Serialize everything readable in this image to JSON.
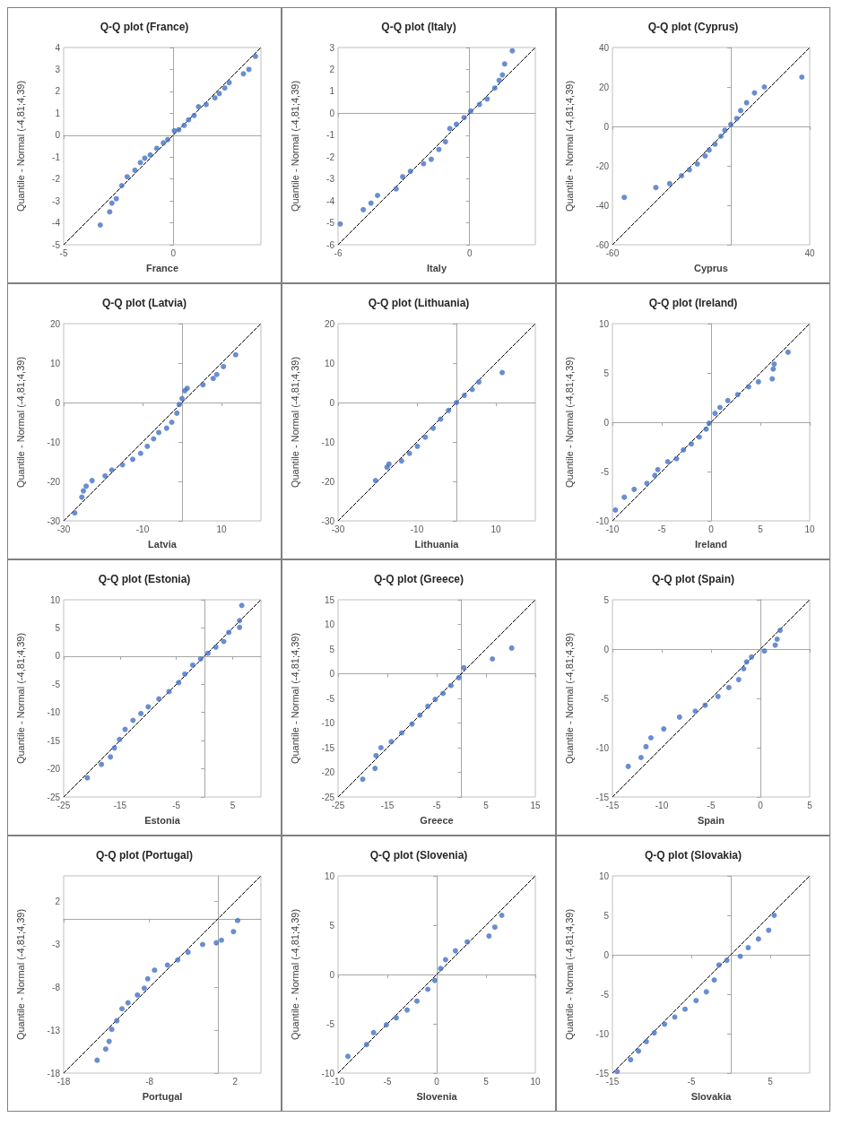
{
  "chart_data": [
    {
      "type": "scatter",
      "title": "Q-Q plot (France)",
      "xlabel": "France",
      "ylabel": "Quantile - Normal (-4,81;4,39)",
      "xlim": [
        -5,
        4
      ],
      "ylim": [
        -5,
        4
      ],
      "xticks": [
        -5,
        0
      ],
      "yticks": [
        -5,
        -4,
        -3,
        -2,
        -1,
        0,
        1,
        2,
        3,
        4
      ],
      "series": [
        {
          "type": "scatter",
          "marker": "circle",
          "color": "#4472c4",
          "x": [
            -3.33,
            -2.9,
            -2.8,
            -2.6,
            -2.35,
            -2.1,
            -1.75,
            -1.5,
            -1.3,
            -1.05,
            -0.75,
            -0.45,
            -0.25,
            0.05,
            0.25,
            0.5,
            0.7,
            0.95,
            1.15,
            1.5,
            1.9,
            2.1,
            2.35,
            2.55,
            3.2,
            3.45,
            3.75
          ],
          "values": [
            -4.1,
            -3.5,
            -3.1,
            -2.9,
            -2.3,
            -1.9,
            -1.6,
            -1.25,
            -1.05,
            -0.9,
            -0.6,
            -0.35,
            -0.2,
            0.2,
            0.25,
            0.45,
            0.7,
            0.9,
            1.3,
            1.4,
            1.7,
            1.9,
            2.15,
            2.4,
            2.8,
            3.0,
            3.6
          ]
        },
        {
          "type": "line",
          "marker": "none",
          "color": "#000000",
          "line_style": "dashed",
          "x": [
            -5,
            4
          ],
          "values": [
            -5,
            4
          ]
        }
      ]
    },
    {
      "type": "scatter",
      "title": "Q-Q plot (Italy)",
      "xlabel": "Italy",
      "ylabel": "Quantile - Normal (-4,81;4,39)",
      "xlim": [
        -6,
        3
      ],
      "ylim": [
        -6,
        3
      ],
      "xticks": [
        -6,
        0
      ],
      "yticks": [
        -6,
        -5,
        -4,
        -3,
        -2,
        -1,
        0,
        1,
        2,
        3
      ],
      "series": [
        {
          "type": "scatter",
          "marker": "circle",
          "color": "#4472c4",
          "x": [
            -5.9,
            -4.85,
            -4.5,
            -4.2,
            -3.35,
            -3.05,
            -2.7,
            -2.1,
            -1.75,
            -1.4,
            -1.1,
            -0.9,
            -0.6,
            -0.25,
            0.05,
            0.45,
            0.8,
            1.15,
            1.35,
            1.5,
            1.6,
            1.95
          ],
          "values": [
            -5.05,
            -4.4,
            -4.1,
            -3.75,
            -3.45,
            -2.9,
            -2.65,
            -2.3,
            -2.1,
            -1.65,
            -1.3,
            -0.7,
            -0.5,
            -0.2,
            0.1,
            0.4,
            0.65,
            1.15,
            1.5,
            1.75,
            2.25,
            2.85
          ]
        },
        {
          "type": "line",
          "marker": "none",
          "color": "#000000",
          "line_style": "dashed",
          "x": [
            -6,
            3
          ],
          "values": [
            -6,
            3
          ]
        }
      ]
    },
    {
      "type": "scatter",
      "title": "Q-Q plot (Cyprus)",
      "xlabel": "Cyprus",
      "ylabel": "Quantile - Normal (-4,81;4,39)",
      "xlim": [
        -60,
        40
      ],
      "ylim": [
        -60,
        40
      ],
      "xticks": [
        -60,
        40
      ],
      "yticks": [
        -60,
        -40,
        -20,
        0,
        20,
        40
      ],
      "series": [
        {
          "type": "scatter",
          "marker": "circle",
          "color": "#4472c4",
          "x": [
            -54,
            -38,
            -31,
            -25,
            -21,
            -17,
            -13,
            -11,
            -8,
            -5,
            -3,
            0,
            3,
            5,
            8,
            12,
            17,
            36
          ],
          "values": [
            -36,
            -31,
            -29,
            -25,
            -22,
            -19,
            -15,
            -12,
            -9,
            -5,
            -2,
            1,
            4,
            8,
            12,
            17,
            20,
            25
          ]
        },
        {
          "type": "line",
          "marker": "none",
          "color": "#000000",
          "line_style": "dashed",
          "x": [
            -60,
            40
          ],
          "values": [
            -60,
            40
          ]
        }
      ]
    },
    {
      "type": "scatter",
      "title": "Q-Q plot (Latvia)",
      "xlabel": "Latvia",
      "ylabel": "Quantile - Normal (-4,81;4,39)",
      "xlim": [
        -30,
        20
      ],
      "ylim": [
        -30,
        20
      ],
      "xticks": [
        -30,
        -10,
        10
      ],
      "yticks": [
        -30,
        -20,
        -10,
        0,
        10,
        20
      ],
      "series": [
        {
          "type": "scatter",
          "marker": "circle",
          "color": "#4472c4",
          "x": [
            -27.2,
            -25.4,
            -25,
            -24.3,
            -22.8,
            -19.5,
            -17.8,
            -15.1,
            -12.5,
            -10.5,
            -8.8,
            -7.2,
            -5.9,
            -3.9,
            -2.6,
            -1.3,
            -0.7,
            0,
            0.7,
            1.3,
            5.3,
            7.9,
            8.8,
            10.5,
            13.6
          ],
          "values": [
            -28,
            -24,
            -22.4,
            -21.2,
            -19.8,
            -18.6,
            -17.1,
            -15.8,
            -14.4,
            -12.9,
            -11.1,
            -9.2,
            -7.6,
            -6.5,
            -5,
            -2.7,
            -0.5,
            1,
            3,
            3.6,
            4.5,
            6.1,
            7.1,
            9.1,
            12.1
          ]
        },
        {
          "type": "line",
          "marker": "none",
          "color": "#000000",
          "line_style": "dashed",
          "x": [
            -30,
            20
          ],
          "values": [
            -30,
            20
          ]
        }
      ]
    },
    {
      "type": "scatter",
      "title": "Q-Q plot (Lithuania)",
      "xlabel": "Lithuania",
      "ylabel": "Quantile - Normal (-4,81;4,39)",
      "xlim": [
        -30,
        20
      ],
      "ylim": [
        -30,
        20
      ],
      "xticks": [
        -30,
        -10,
        10
      ],
      "yticks": [
        -30,
        -20,
        -10,
        0,
        10,
        20
      ],
      "series": [
        {
          "type": "scatter",
          "marker": "circle",
          "color": "#4472c4",
          "x": [
            -20.5,
            -17.6,
            -17.1,
            -13.9,
            -11.9,
            -9.9,
            -7.9,
            -5.9,
            -4,
            -2,
            0,
            2,
            4,
            5.7,
            11.6
          ],
          "values": [
            -19.8,
            -16.4,
            -15.6,
            -14.8,
            -12.9,
            -11.1,
            -8.8,
            -6.5,
            -4.2,
            -2,
            0,
            1.8,
            3.3,
            5.2,
            7.6
          ]
        },
        {
          "type": "line",
          "marker": "none",
          "color": "#000000",
          "line_style": "dashed",
          "x": [
            -30,
            20
          ],
          "values": [
            -30,
            20
          ]
        }
      ]
    },
    {
      "type": "scatter",
      "title": "Q-Q plot (Ireland)",
      "xlabel": "Ireland",
      "ylabel": "Quantile - Normal (-4,81;4,39)",
      "xlim": [
        -10,
        10
      ],
      "ylim": [
        -10,
        10
      ],
      "xticks": [
        -10,
        -5,
        0,
        5,
        10
      ],
      "yticks": [
        -10,
        -5,
        0,
        5,
        10
      ],
      "series": [
        {
          "type": "scatter",
          "marker": "circle",
          "color": "#4472c4",
          "x": [
            -9.7,
            -8.8,
            -7.8,
            -6.5,
            -5.7,
            -5.4,
            -4.4,
            -3.5,
            -2.8,
            -2,
            -1.2,
            -0.5,
            -0.2,
            0.4,
            0.9,
            1.7,
            2.7,
            3.8,
            4.8,
            6.2,
            6.3,
            6.4,
            7.8
          ],
          "values": [
            -8.9,
            -7.6,
            -6.8,
            -6.2,
            -5.4,
            -4.8,
            -4,
            -3.7,
            -2.8,
            -2.2,
            -1.5,
            -0.7,
            -0.1,
            0.9,
            1.5,
            2.2,
            2.8,
            3.6,
            4.1,
            4.4,
            5.4,
            5.9,
            7.1
          ]
        },
        {
          "type": "line",
          "marker": "none",
          "color": "#000000",
          "line_style": "dashed",
          "x": [
            -10,
            10
          ],
          "values": [
            -10,
            10
          ]
        }
      ]
    },
    {
      "type": "scatter",
      "title": "Q-Q plot (Estonia)",
      "xlabel": "Estonia",
      "ylabel": "Quantile - Normal (-4,81;4,39)",
      "xlim": [
        -25,
        10
      ],
      "ylim": [
        -25,
        10
      ],
      "xticks": [
        -25,
        -15,
        -5,
        5
      ],
      "yticks": [
        -25,
        -20,
        -15,
        -10,
        -5,
        0,
        5,
        10
      ],
      "series": [
        {
          "type": "scatter",
          "marker": "circle",
          "color": "#4472c4",
          "x": [
            -20.8,
            -18.3,
            -16.7,
            -16,
            -15.1,
            -14.1,
            -12.7,
            -11.3,
            -10,
            -8.1,
            -6.3,
            -4.6,
            -3.5,
            -2.1,
            -0.7,
            0.6,
            2,
            3.4,
            4.3,
            6.2,
            6.2,
            6.6
          ],
          "values": [
            -21.6,
            -19.2,
            -17.9,
            -16.3,
            -14.8,
            -13,
            -11.4,
            -10.2,
            -9,
            -7.6,
            -6.3,
            -4.7,
            -3.2,
            -1.6,
            -0.5,
            0.5,
            1.6,
            2.6,
            4.2,
            5.1,
            6.3,
            9
          ]
        },
        {
          "type": "line",
          "marker": "none",
          "color": "#000000",
          "line_style": "dashed",
          "x": [
            -25,
            10
          ],
          "values": [
            -25,
            10
          ]
        }
      ]
    },
    {
      "type": "scatter",
      "title": "Q-Q plot (Greece)",
      "xlabel": "Greece",
      "ylabel": "Quantile - Normal (-4,81;4,39)",
      "xlim": [
        -25,
        15
      ],
      "ylim": [
        -25,
        15
      ],
      "xticks": [
        -25,
        -15,
        -5,
        5,
        15
      ],
      "yticks": [
        -25,
        -20,
        -15,
        -10,
        -5,
        0,
        5,
        10,
        15
      ],
      "series": [
        {
          "type": "scatter",
          "marker": "circle",
          "color": "#4472c4",
          "x": [
            -20,
            -17.5,
            -17.3,
            -16.3,
            -14.2,
            -12.1,
            -10,
            -8.4,
            -6.8,
            -5.3,
            -3.7,
            -2.1,
            -0.5,
            0.5,
            6.3,
            10.2
          ],
          "values": [
            -21.4,
            -19.2,
            -16.6,
            -15,
            -13.8,
            -12,
            -10.2,
            -8.4,
            -6.6,
            -5.2,
            -4,
            -2.4,
            -0.8,
            1.2,
            3,
            5.2
          ]
        },
        {
          "type": "line",
          "marker": "none",
          "color": "#000000",
          "line_style": "dashed",
          "x": [
            -25,
            15
          ],
          "values": [
            -25,
            15
          ]
        }
      ]
    },
    {
      "type": "scatter",
      "title": "Q-Q plot (Spain)",
      "xlabel": "Spain",
      "ylabel": "Quantile - Normal (-4,81;4,39)",
      "xlim": [
        -15,
        5
      ],
      "ylim": [
        -15,
        5
      ],
      "xticks": [
        -15,
        -10,
        -5,
        0,
        5
      ],
      "yticks": [
        -15,
        -10,
        -5,
        0,
        5
      ],
      "series": [
        {
          "type": "scatter",
          "marker": "circle",
          "color": "#4472c4",
          "x": [
            -13.4,
            -12.1,
            -11.6,
            -11.1,
            -9.8,
            -8.2,
            -6.6,
            -5.6,
            -4.3,
            -3.2,
            -2.2,
            -1.7,
            -1.4,
            -0.9,
            0.4,
            1.5,
            1.7,
            2
          ],
          "values": [
            -11.9,
            -11,
            -9.9,
            -9,
            -8.1,
            -6.9,
            -6.3,
            -5.7,
            -4.8,
            -3.9,
            -3.1,
            -2,
            -1.3,
            -0.8,
            -0.2,
            0.4,
            1,
            1.9
          ]
        },
        {
          "type": "line",
          "marker": "none",
          "color": "#000000",
          "line_style": "dashed",
          "x": [
            -15,
            5
          ],
          "values": [
            -15,
            5
          ]
        }
      ]
    },
    {
      "type": "scatter",
      "title": "Q-Q plot (Portugal)",
      "xlabel": "Portugal",
      "ylabel": "Quantile - Normal (-4,81;4,39)",
      "xlim": [
        -18,
        5
      ],
      "ylim": [
        -18,
        5
      ],
      "xticks": [
        -18,
        -8,
        2
      ],
      "yticks": [
        -18,
        -13,
        -8,
        -3,
        2
      ],
      "series": [
        {
          "type": "scatter",
          "marker": "circle",
          "color": "#4472c4",
          "x": [
            -14.1,
            -13.1,
            -12.7,
            -12.4,
            -11.8,
            -11.2,
            -10.5,
            -9.4,
            -8.6,
            -8.2,
            -7.4,
            -5.9,
            -4.7,
            -3.5,
            -1.8,
            -0.2,
            0.4,
            1.8,
            2.3
          ],
          "values": [
            -16.5,
            -15.2,
            -14.3,
            -12.9,
            -11.9,
            -10.5,
            -9.8,
            -8.9,
            -8.1,
            -7,
            -6,
            -5.4,
            -4.8,
            -3.9,
            -3,
            -2.8,
            -2.5,
            -1.5,
            -0.2
          ]
        },
        {
          "type": "line",
          "marker": "none",
          "color": "#000000",
          "line_style": "dashed",
          "x": [
            -18,
            5
          ],
          "values": [
            -18,
            5
          ]
        }
      ]
    },
    {
      "type": "scatter",
      "title": "Q-Q plot (Slovenia)",
      "xlabel": "Slovenia",
      "ylabel": "Quantile - Normal (-4,81;4,39)",
      "xlim": [
        -10,
        10
      ],
      "ylim": [
        -10,
        10
      ],
      "xticks": [
        -10,
        -5,
        0,
        5,
        10
      ],
      "yticks": [
        -10,
        -5,
        0,
        5,
        10
      ],
      "series": [
        {
          "type": "scatter",
          "marker": "circle",
          "color": "#4472c4",
          "x": [
            -9,
            -7.1,
            -6.4,
            -5.1,
            -4.1,
            -3,
            -2,
            -0.9,
            -0.2,
            0.4,
            0.9,
            1.9,
            3.1,
            5.3,
            5.9,
            6.6
          ],
          "values": [
            -8.3,
            -7.1,
            -5.9,
            -5.1,
            -4.4,
            -3.6,
            -2.7,
            -1.5,
            -0.6,
            0.6,
            1.5,
            2.4,
            3.3,
            3.9,
            4.8,
            6
          ]
        },
        {
          "type": "line",
          "marker": "none",
          "color": "#000000",
          "line_style": "dashed",
          "x": [
            -10,
            10
          ],
          "values": [
            -10,
            10
          ]
        }
      ]
    },
    {
      "type": "scatter",
      "title": "Q-Q plot (Slovakia)",
      "xlabel": "Slovakia",
      "ylabel": "Quantile - Normal (-4,81;4,39)",
      "xlim": [
        -15,
        10
      ],
      "ylim": [
        -15,
        10
      ],
      "xticks": [
        -15,
        -5,
        5
      ],
      "yticks": [
        -15,
        -10,
        -5,
        0,
        5,
        10
      ],
      "series": [
        {
          "type": "scatter",
          "marker": "circle",
          "color": "#4472c4",
          "x": [
            -14.4,
            -12.7,
            -11.7,
            -10.7,
            -9.7,
            -8.4,
            -7.1,
            -5.8,
            -4.4,
            -3.1,
            -2.1,
            -1.5,
            -0.5,
            1.2,
            2.2,
            3.5,
            4.8,
            5.5
          ],
          "values": [
            -14.8,
            -13.3,
            -12.2,
            -11,
            -9.9,
            -8.8,
            -7.9,
            -6.9,
            -5.8,
            -4.7,
            -3.2,
            -1.3,
            -0.7,
            -0.2,
            0.9,
            2,
            3.1,
            5
          ]
        },
        {
          "type": "line",
          "marker": "none",
          "color": "#000000",
          "line_style": "dashed",
          "x": [
            -15,
            10
          ],
          "values": [
            -15,
            10
          ]
        }
      ]
    }
  ]
}
